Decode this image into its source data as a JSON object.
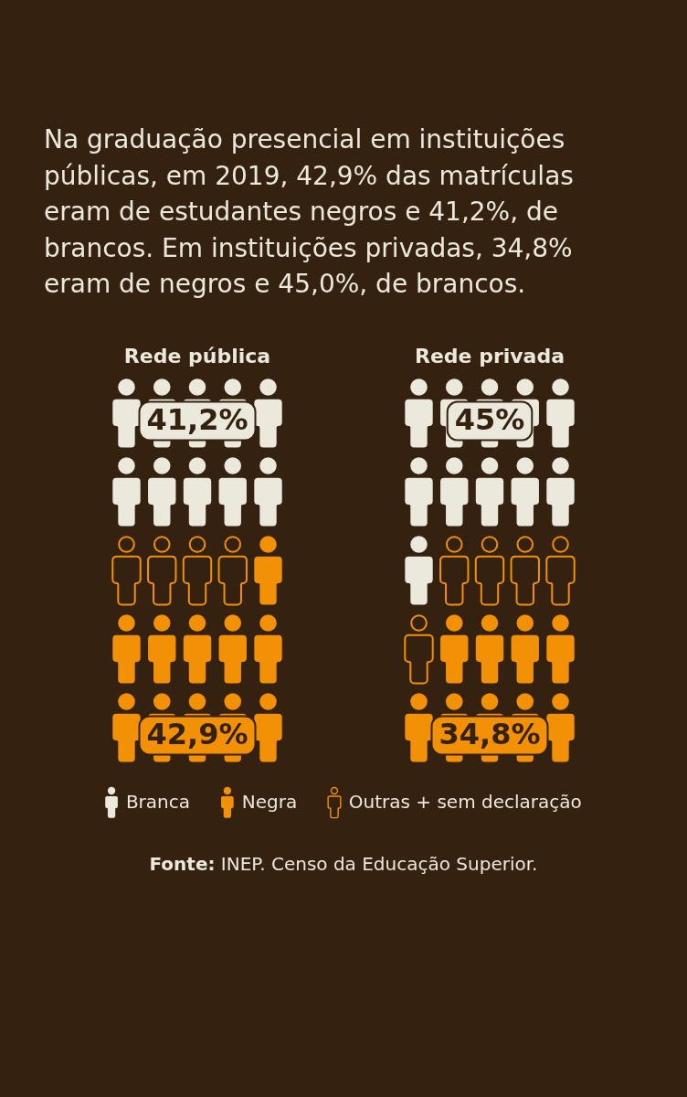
{
  "chart_data": {
    "type": "other",
    "title": "Na graduação presencial em instituições públicas, em 2019, 42,9% das matrículas eram de estudantes negros e 41,2%, de brancos. Em instituições privadas, 34,8% eram de negros e 45,0%, de brancos.",
    "categories": [
      "Rede pública",
      "Rede privada"
    ],
    "series": [
      {
        "name": "Branca",
        "color": "#ebe8dc",
        "values": [
          41.2,
          45
        ],
        "value_labels": [
          "41,2%",
          "45%"
        ]
      },
      {
        "name": "Negra",
        "color": "#f29105",
        "values": [
          42.9,
          34.8
        ],
        "value_labels": [
          "42,9%",
          "34,8%"
        ]
      },
      {
        "name": "Outras + sem declaração",
        "color": "#f29105",
        "values": [
          null,
          null
        ]
      }
    ],
    "legend": "bottom",
    "annotations": [
      "Fonte: INEP. Censo da Educação Superior."
    ]
  }
}
